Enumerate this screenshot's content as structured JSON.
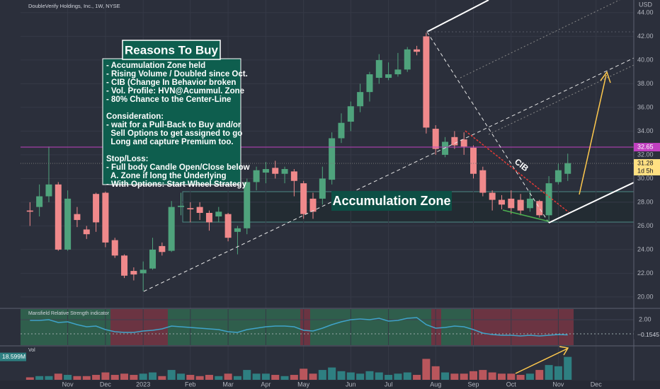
{
  "chart_data": [
    {
      "type": "candlestick",
      "title": "DoubleVerify Holdings, Inc., 1W, NYSE",
      "currency": "USD",
      "open": [
        27.3,
        27.6,
        28.5,
        29.5,
        24.0,
        27.0,
        25.7,
        28.7,
        28.8,
        24.8,
        23.5,
        22.2,
        22.0,
        22.4,
        24.3,
        23.9,
        27.6,
        27.5,
        27.6,
        27.1,
        26.8,
        27.0,
        25.5,
        25.8,
        29.7,
        30.5,
        30.9,
        30.4,
        30.6,
        29.6,
        28.3,
        28.3,
        29.9,
        33.4,
        34.8,
        36.1,
        37.3,
        38.5,
        38.5,
        38.8,
        39.2,
        40.9,
        42.0,
        34.2,
        32.0,
        33.5,
        33.3,
        32.6,
        30.7,
        28.8,
        28.2,
        28.3,
        28.2,
        27.5,
        28.1,
        26.9,
        29.7,
        30.4
      ],
      "high": [
        28.0,
        29.5,
        32.7,
        29.7,
        29.0,
        27.6,
        26.0,
        28.8,
        28.9,
        25.0,
        23.6,
        22.5,
        23.0,
        25.0,
        24.6,
        28.1,
        28.8,
        28.0,
        28.0,
        27.3,
        27.6,
        27.1,
        26.0,
        30.0,
        31.0,
        31.4,
        31.5,
        31.0,
        30.8,
        29.8,
        28.8,
        31.0,
        33.9,
        35.5,
        36.5,
        38.0,
        39.0,
        40.5,
        39.8,
        40.6,
        41.1,
        41.2,
        42.3,
        34.5,
        33.5,
        34.0,
        33.9,
        32.8,
        31.0,
        29.0,
        28.6,
        29.0,
        28.7,
        29.0,
        28.2,
        30.2,
        31.3,
        32.1
      ],
      "low": [
        26.0,
        26.8,
        28.0,
        23.9,
        23.9,
        25.9,
        24.9,
        25.5,
        24.2,
        23.3,
        21.6,
        21.4,
        20.5,
        22.3,
        23.5,
        23.8,
        26.9,
        26.3,
        26.5,
        25.6,
        26.3,
        24.7,
        23.6,
        25.3,
        29.0,
        29.6,
        30.0,
        29.6,
        28.5,
        26.6,
        26.6,
        27.8,
        29.5,
        33.0,
        34.0,
        35.6,
        36.5,
        38.0,
        38.3,
        38.6,
        39.0,
        40.4,
        33.8,
        32.0,
        31.8,
        32.5,
        32.0,
        30.0,
        28.5,
        27.3,
        27.4,
        27.0,
        26.9,
        27.2,
        26.7,
        26.3,
        29.5,
        29.8
      ],
      "close": [
        27.2,
        28.5,
        29.5,
        24.0,
        28.3,
        26.5,
        25.3,
        26.3,
        24.6,
        23.5,
        21.8,
        21.9,
        22.3,
        24.0,
        23.8,
        27.6,
        27.7,
        27.4,
        27.1,
        26.3,
        27.2,
        25.0,
        25.8,
        29.7,
        30.7,
        30.8,
        30.4,
        30.8,
        29.8,
        27.0,
        27.2,
        30.0,
        33.4,
        34.7,
        36.1,
        37.3,
        38.8,
        40.0,
        38.8,
        39.2,
        40.9,
        40.7,
        34.3,
        32.5,
        33.1,
        32.8,
        32.7,
        30.4,
        28.8,
        28.2,
        27.8,
        27.5,
        27.3,
        28.3,
        26.9,
        29.6,
        30.7,
        31.3
      ],
      "up_color": "#4fa37c",
      "down_color": "#f0898b",
      "xlim": [
        -1,
        64
      ],
      "xticks": [
        {
          "value": 4,
          "label": "Nov"
        },
        {
          "value": 8,
          "label": "Dec"
        },
        {
          "value": 12,
          "label": "2023"
        },
        {
          "value": 17,
          "label": "Feb"
        },
        {
          "value": 21,
          "label": "Mar"
        },
        {
          "value": 25,
          "label": "Apr"
        },
        {
          "value": 29,
          "label": "May"
        },
        {
          "value": 34,
          "label": "Jun"
        },
        {
          "value": 38,
          "label": "Jul"
        },
        {
          "value": 43,
          "label": "Aug"
        },
        {
          "value": 47,
          "label": "Sep"
        },
        {
          "value": 51,
          "label": "Oct"
        },
        {
          "value": 56,
          "label": "Nov"
        },
        {
          "value": 60,
          "label": "Dec"
        }
      ],
      "ylim": [
        19.1,
        45.07
      ],
      "yticks": [
        {
          "value": 20,
          "label": "20.00"
        },
        {
          "value": 22,
          "label": "22.00"
        },
        {
          "value": 24,
          "label": "24.00"
        },
        {
          "value": 26,
          "label": "26.00"
        },
        {
          "value": 28,
          "label": "28.00"
        },
        {
          "value": 30,
          "label": "30.00"
        },
        {
          "value": 32,
          "label": "32.00"
        },
        {
          "value": 34,
          "label": "34.00"
        },
        {
          "value": 36,
          "label": "36.00"
        },
        {
          "value": 38,
          "label": "38.00"
        },
        {
          "value": 40,
          "label": "40.00"
        },
        {
          "value": 42,
          "label": "42.00"
        },
        {
          "value": 44,
          "label": "44.00"
        }
      ],
      "grid": true,
      "level": {
        "value": 32.65,
        "label": "32.65",
        "color": "#c040c0"
      },
      "last": {
        "value": 31.28,
        "label": "31.28",
        "countdown": "1d 5h",
        "color": "#ffe082"
      },
      "zone_label": "Accumulation Zone",
      "cib_label": "CIB",
      "note": {
        "title": "Reasons To Buy",
        "sections": [
          {
            "lines": [
              "- Accumulation Zone held",
              "- Rising Volume / Doubled since Oct.",
              "- CIB (Change In Behavior broken",
              "- Vol. Profile: HVN@Acummul. Zone",
              "- 80% Chance to the Center-Line"
            ]
          },
          {
            "heading": "Consideration:",
            "lines": [
              "- wait for a Pull-Back to Buy and/or",
              "  Sell Options to get assigned to go",
              "  Long and capture Premium too."
            ]
          },
          {
            "heading": "Stop/Loss:",
            "lines": [
              "- Full body Candle Open/Close below",
              "  A. Zone if long the Underlying",
              "- With Options: Start Wheel Strategy"
            ]
          }
        ]
      }
    },
    {
      "type": "line",
      "title": "Mansfield Relative Strength indicator",
      "color": "#3fa3c9",
      "values": [
        1.9,
        1.9,
        2.0,
        1.6,
        1.7,
        1.3,
        1.0,
        1.1,
        0.6,
        0.3,
        0.2,
        0.2,
        0.4,
        0.5,
        0.7,
        1.1,
        1.0,
        0.9,
        0.8,
        0.7,
        0.6,
        0.3,
        0.2,
        0.6,
        0.8,
        1.0,
        1.1,
        1.1,
        1.0,
        0.5,
        0.4,
        0.8,
        1.3,
        1.7,
        2.0,
        2.1,
        2.0,
        2.2,
        1.8,
        1.9,
        2.2,
        2.3,
        1.3,
        0.8,
        0.9,
        1.1,
        1.0,
        0.6,
        0.1,
        -0.1,
        -0.2,
        -0.2,
        -0.3,
        -0.2,
        -0.3,
        -0.2,
        -0.1,
        -0.1545
      ],
      "last_label": "−0.1545",
      "ylim": [
        -1.6,
        3.5
      ],
      "yticks": [
        {
          "value": 2,
          "label": "2.00"
        }
      ]
    },
    {
      "type": "bar",
      "title": "Vol",
      "values": [
        2,
        3,
        3,
        5,
        4,
        3,
        3,
        4,
        6,
        4,
        5,
        4,
        5,
        6,
        3,
        8,
        5,
        4,
        3,
        4,
        3,
        5,
        3,
        8,
        5,
        5,
        4,
        3,
        4,
        9,
        5,
        8,
        10,
        7,
        6,
        5,
        7,
        6,
        4,
        5,
        6,
        4,
        17,
        11,
        6,
        5,
        5,
        7,
        8,
        6,
        5,
        5,
        4,
        5,
        8,
        12,
        11,
        18.599
      ],
      "last_label": "18.599M",
      "ylim": [
        0,
        27
      ]
    }
  ]
}
